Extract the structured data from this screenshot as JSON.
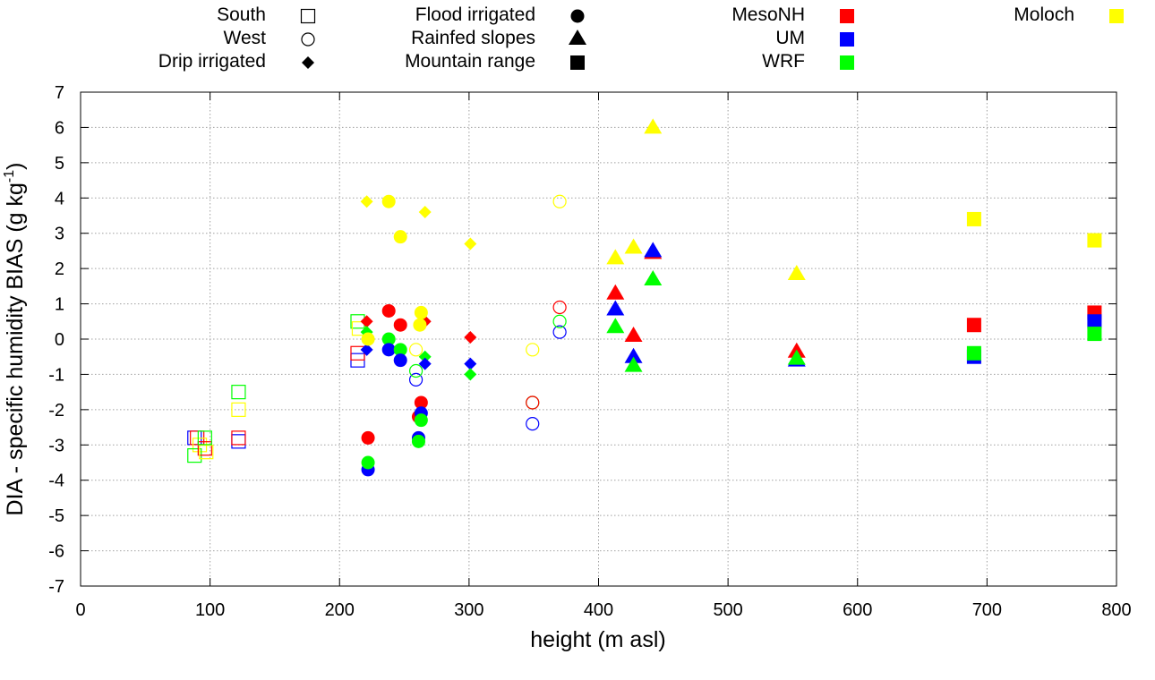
{
  "chart_data": {
    "type": "scatter",
    "xlabel": "height (m asl)",
    "ylabel": "DIA - specific humidity BIAS (g kg",
    "ylabel_unit_sup": "-1",
    "ylabel_close": ")",
    "xlim": [
      0,
      800
    ],
    "ylim": [
      -7,
      7
    ],
    "xticks": [
      0,
      100,
      200,
      300,
      400,
      500,
      600,
      700,
      800
    ],
    "yticks": [
      -7,
      -6,
      -5,
      -4,
      -3,
      -2,
      -1,
      0,
      1,
      2,
      3,
      4,
      5,
      6,
      7
    ],
    "grid": true,
    "legend_categories": [
      {
        "label": "South",
        "marker": "square-open"
      },
      {
        "label": "West",
        "marker": "circle-open"
      },
      {
        "label": "Drip irrigated",
        "marker": "diamond"
      },
      {
        "label": "Flood irrigated",
        "marker": "circle"
      },
      {
        "label": "Rainfed slopes",
        "marker": "triangle"
      },
      {
        "label": "Mountain range",
        "marker": "square"
      }
    ],
    "legend_models": [
      {
        "label": "MesoNH",
        "color": "#ff0000"
      },
      {
        "label": "UM",
        "color": "#0000ff"
      },
      {
        "label": "WRF",
        "color": "#00ff00"
      },
      {
        "label": "Moloch",
        "color": "#ffff00"
      }
    ],
    "series": [
      {
        "name": "South",
        "marker": "square-open",
        "points": [
          {
            "x": 88,
            "y": -2.8,
            "model": "UM"
          },
          {
            "x": 90,
            "y": -2.8,
            "model": "MesoNH"
          },
          {
            "x": 92,
            "y": -3.0,
            "model": "Moloch"
          },
          {
            "x": 88,
            "y": -3.3,
            "model": "WRF"
          },
          {
            "x": 96,
            "y": -3.1,
            "model": "MesoNH"
          },
          {
            "x": 97,
            "y": -3.2,
            "model": "Moloch"
          },
          {
            "x": 96,
            "y": -2.8,
            "model": "WRF"
          },
          {
            "x": 122,
            "y": -2.9,
            "model": "UM"
          },
          {
            "x": 122,
            "y": -2.8,
            "model": "MesoNH"
          },
          {
            "x": 122,
            "y": -2.0,
            "model": "Moloch"
          },
          {
            "x": 122,
            "y": -1.5,
            "model": "WRF"
          },
          {
            "x": 214,
            "y": -0.6,
            "model": "UM"
          },
          {
            "x": 214,
            "y": -0.4,
            "model": "MesoNH"
          },
          {
            "x": 214,
            "y": 0.5,
            "model": "WRF"
          },
          {
            "x": 215,
            "y": 0.3,
            "model": "Moloch"
          }
        ]
      },
      {
        "name": "West",
        "marker": "circle-open",
        "points": [
          {
            "x": 259,
            "y": -1.15,
            "model": "UM"
          },
          {
            "x": 259,
            "y": -0.9,
            "model": "WRF"
          },
          {
            "x": 259,
            "y": -0.3,
            "model": "Moloch"
          },
          {
            "x": 349,
            "y": -2.4,
            "model": "UM"
          },
          {
            "x": 349,
            "y": -1.8,
            "model": "WRF"
          },
          {
            "x": 349,
            "y": -1.8,
            "model": "MesoNH"
          },
          {
            "x": 349,
            "y": -0.3,
            "model": "Moloch"
          },
          {
            "x": 370,
            "y": 0.2,
            "model": "UM"
          },
          {
            "x": 370,
            "y": 0.5,
            "model": "WRF"
          },
          {
            "x": 370,
            "y": 0.9,
            "model": "MesoNH"
          },
          {
            "x": 370,
            "y": 3.9,
            "model": "Moloch"
          }
        ]
      },
      {
        "name": "Drip irrigated",
        "marker": "diamond",
        "points": [
          {
            "x": 221,
            "y": 3.9,
            "model": "Moloch"
          },
          {
            "x": 221,
            "y": 0.5,
            "model": "MesoNH"
          },
          {
            "x": 221,
            "y": 0.2,
            "model": "WRF"
          },
          {
            "x": 221,
            "y": -0.3,
            "model": "UM"
          },
          {
            "x": 266,
            "y": 3.6,
            "model": "Moloch"
          },
          {
            "x": 266,
            "y": 0.5,
            "model": "MesoNH"
          },
          {
            "x": 266,
            "y": -0.5,
            "model": "WRF"
          },
          {
            "x": 266,
            "y": -0.7,
            "model": "UM"
          },
          {
            "x": 301,
            "y": 2.7,
            "model": "Moloch"
          },
          {
            "x": 301,
            "y": 0.05,
            "model": "MesoNH"
          },
          {
            "x": 301,
            "y": -0.7,
            "model": "UM"
          },
          {
            "x": 301,
            "y": -1.0,
            "model": "WRF"
          }
        ]
      },
      {
        "name": "Flood irrigated",
        "marker": "circle",
        "points": [
          {
            "x": 222,
            "y": -3.7,
            "model": "UM"
          },
          {
            "x": 222,
            "y": -3.5,
            "model": "WRF"
          },
          {
            "x": 222,
            "y": -2.8,
            "model": "MesoNH"
          },
          {
            "x": 222,
            "y": 0.0,
            "model": "Moloch"
          },
          {
            "x": 238,
            "y": 3.9,
            "model": "Moloch"
          },
          {
            "x": 238,
            "y": 0.8,
            "model": "MesoNH"
          },
          {
            "x": 238,
            "y": 0.0,
            "model": "WRF"
          },
          {
            "x": 238,
            "y": -0.3,
            "model": "UM"
          },
          {
            "x": 247,
            "y": 2.9,
            "model": "Moloch"
          },
          {
            "x": 247,
            "y": 0.4,
            "model": "MesoNH"
          },
          {
            "x": 247,
            "y": -0.3,
            "model": "WRF"
          },
          {
            "x": 247,
            "y": -0.6,
            "model": "UM"
          },
          {
            "x": 261,
            "y": -2.2,
            "model": "MesoNH"
          },
          {
            "x": 261,
            "y": -2.8,
            "model": "UM"
          },
          {
            "x": 261,
            "y": -2.9,
            "model": "WRF"
          },
          {
            "x": 262,
            "y": 0.4,
            "model": "Moloch"
          },
          {
            "x": 263,
            "y": -1.8,
            "model": "MesoNH"
          },
          {
            "x": 263,
            "y": -2.1,
            "model": "UM"
          },
          {
            "x": 263,
            "y": -2.3,
            "model": "WRF"
          },
          {
            "x": 263,
            "y": 0.75,
            "model": "Moloch"
          }
        ]
      },
      {
        "name": "Rainfed slopes",
        "marker": "triangle",
        "points": [
          {
            "x": 413,
            "y": 2.3,
            "model": "Moloch"
          },
          {
            "x": 413,
            "y": 1.3,
            "model": "MesoNH"
          },
          {
            "x": 413,
            "y": 0.85,
            "model": "UM"
          },
          {
            "x": 413,
            "y": 0.35,
            "model": "WRF"
          },
          {
            "x": 427,
            "y": 2.6,
            "model": "Moloch"
          },
          {
            "x": 427,
            "y": 0.1,
            "model": "MesoNH"
          },
          {
            "x": 427,
            "y": -0.5,
            "model": "UM"
          },
          {
            "x": 427,
            "y": -0.75,
            "model": "WRF"
          },
          {
            "x": 442,
            "y": 6.0,
            "model": "Moloch"
          },
          {
            "x": 442,
            "y": 2.45,
            "model": "MesoNH"
          },
          {
            "x": 442,
            "y": 2.5,
            "model": "UM"
          },
          {
            "x": 442,
            "y": 1.7,
            "model": "WRF"
          },
          {
            "x": 553,
            "y": 1.85,
            "model": "Moloch"
          },
          {
            "x": 553,
            "y": -0.35,
            "model": "MesoNH"
          },
          {
            "x": 553,
            "y": -0.6,
            "model": "UM"
          },
          {
            "x": 553,
            "y": -0.55,
            "model": "WRF"
          }
        ]
      },
      {
        "name": "Mountain range",
        "marker": "square",
        "points": [
          {
            "x": 690,
            "y": 3.4,
            "model": "Moloch"
          },
          {
            "x": 690,
            "y": 0.4,
            "model": "MesoNH"
          },
          {
            "x": 690,
            "y": -0.5,
            "model": "UM"
          },
          {
            "x": 690,
            "y": -0.4,
            "model": "WRF"
          },
          {
            "x": 783,
            "y": 2.8,
            "model": "Moloch"
          },
          {
            "x": 783,
            "y": 0.75,
            "model": "MesoNH"
          },
          {
            "x": 783,
            "y": 0.5,
            "model": "UM"
          },
          {
            "x": 783,
            "y": 0.15,
            "model": "WRF"
          }
        ]
      }
    ]
  }
}
